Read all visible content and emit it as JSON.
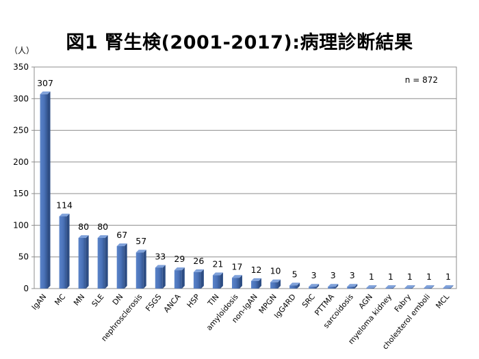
{
  "chart_data": {
    "type": "bar",
    "title": "図1 腎生検(2001-2017):病理診断結果",
    "ylabel": "（人）",
    "annotation": "n = 872",
    "ylim": [
      0,
      350
    ],
    "yticks": [
      0,
      50,
      100,
      150,
      200,
      250,
      300,
      350
    ],
    "grid": true,
    "style": "3d-column",
    "bar_color": "#4a72b8",
    "categories": [
      "IgAN",
      "MC",
      "MN",
      "SLE",
      "DN",
      "nephrosclerosis",
      "FSGS",
      "ANCA",
      "HSP",
      "TIN",
      "amyloidosis",
      "non-IgAN",
      "MPGN",
      "IgG4RD",
      "SRC",
      "PTTMA",
      "sarcoidosis",
      "AGN",
      "myeloma kidney",
      "Fabry",
      "cholesterol emboli",
      "MCL"
    ],
    "values": [
      307,
      114,
      80,
      80,
      67,
      57,
      33,
      29,
      26,
      21,
      17,
      12,
      10,
      5,
      3,
      3,
      3,
      1,
      1,
      1,
      1,
      1
    ]
  }
}
